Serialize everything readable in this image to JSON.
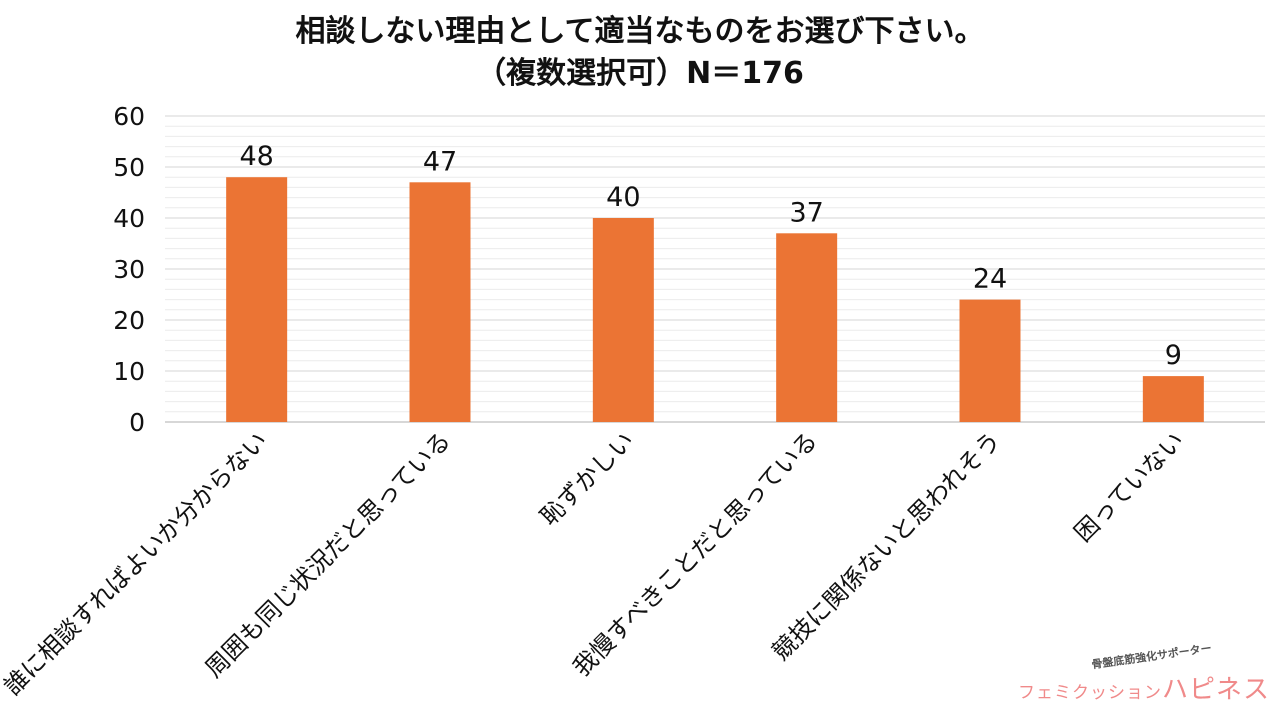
{
  "chart_data": {
    "type": "bar",
    "title": "相談しない理由として適当なものをお選び下さい。",
    "subtitle": "（複数選択可）N＝176",
    "categories": [
      "誰に相談すればよいか分からない",
      "周囲も同じ状況だと思っている",
      "恥ずかしい",
      "我慢すべきことだと思っている",
      "競技に関係ないと思われそう",
      "困っていない"
    ],
    "values": [
      48,
      47,
      40,
      37,
      24,
      9
    ],
    "ylim": [
      0,
      60
    ],
    "yticks": [
      0,
      10,
      20,
      30,
      40,
      50,
      60
    ],
    "bar_color": "#EB7434",
    "grid": true,
    "legend": "none"
  },
  "watermark": {
    "sub": "骨盤底筋強化サポーター",
    "main_prefix": "フェミクッション",
    "main_suffix": "ハピネス"
  }
}
